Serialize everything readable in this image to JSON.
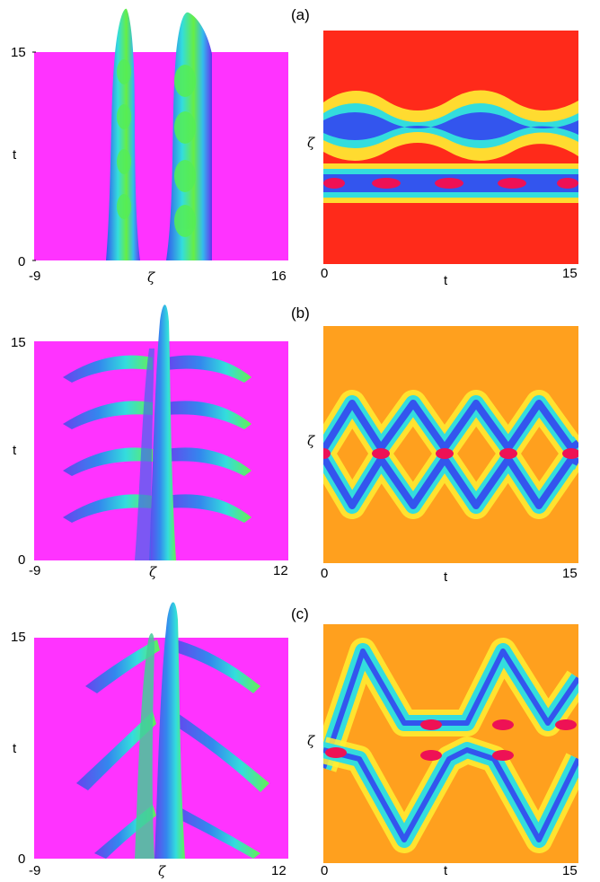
{
  "panels": [
    {
      "label": "(a)",
      "left": {
        "y_top": "15",
        "y_axis": "t",
        "y_bottom": "0",
        "x_left": "-9",
        "x_axis": "ζ",
        "x_right": "16"
      },
      "right": {
        "y_axis": "ζ",
        "x_left": "0",
        "x_axis": "t",
        "x_right": "15"
      }
    },
    {
      "label": "(b)",
      "left": {
        "y_top": "15",
        "y_axis": "t",
        "y_bottom": "0",
        "x_left": "-9",
        "x_axis": "ζ",
        "x_right": "12"
      },
      "right": {
        "y_axis": "ζ",
        "x_left": "0",
        "x_axis": "t",
        "x_right": "15"
      }
    },
    {
      "label": "(c)",
      "left": {
        "y_top": "15",
        "y_axis": "t",
        "y_bottom": "0",
        "x_left": "-9",
        "x_axis": "ζ",
        "x_right": "12"
      },
      "right": {
        "y_axis": "ζ",
        "x_left": "0",
        "x_axis": "t",
        "x_right": "15"
      }
    }
  ],
  "colors": {
    "surface_base": "#ff33ff",
    "map_bg_a": "#ff2a1a",
    "map_bg_bc": "#ffa01e",
    "peak_cyan": "#33dddd",
    "peak_blue": "#3355ee",
    "peak_red": "#ee1155"
  }
}
